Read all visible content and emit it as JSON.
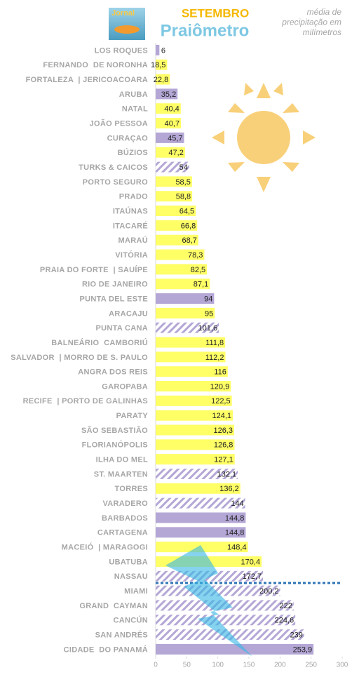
{
  "chart_data": {
    "type": "bar",
    "orientation": "horizontal",
    "logo": "Jornal",
    "title": "SETEMBRO",
    "subtitle": "Praiômetro",
    "note_lines": [
      "média de",
      "precipitação em",
      "milímetros"
    ],
    "categories": [
      "LOS ROQUES",
      "FERNANDO  DE NORONHA",
      "FORTALEZA  | JERICOACOARA",
      "ARUBA",
      "NATAL",
      "JOÃO PESSOA",
      "CURAÇAO",
      "BÚZIOS",
      "TURKS & CAICOS",
      "PORTO SEGURO",
      "PRADO",
      "ITAÚNAS",
      "ITACARÉ",
      "MARAÚ",
      "VITÓRIA",
      "PRAIA DO FORTE  | SAUÍPE",
      "RIO DE JANEIRO",
      "PUNTA DEL ESTE",
      "ARACAJU",
      "PUNTA CANA",
      "BALNEÁRIO  CAMBORIÚ",
      "SALVADOR  | MORRO DE S. PAULO",
      "ANGRA DOS REIS",
      "GAROPABA",
      "RECIFE  | PORTO DE GALINHAS",
      "PARATY",
      "SÃO SEBASTIÃO",
      "FLORIANÓPOLIS",
      "ILHA DO MEL",
      "ST. MAARTEN",
      "TORRES",
      "VARADERO",
      "BARBADOS",
      "CARTAGENA",
      "MACEIÓ  | MARAGOGI",
      "UBATUBA",
      "NASSAU",
      "MIAMI",
      "GRAND  CAYMAN",
      "CANCÚN",
      "SAN ANDRÉS",
      "CIDADE  DO PANAMÁ"
    ],
    "values": [
      6,
      18.5,
      22.8,
      35.2,
      40.4,
      40.7,
      45.7,
      47.2,
      54,
      58.5,
      58.8,
      64.5,
      66.8,
      68.7,
      78.3,
      82.5,
      87.1,
      94,
      95,
      101.6,
      111.8,
      112.2,
      116,
      120.9,
      122.5,
      124.1,
      126.3,
      126.8,
      127.1,
      132.1,
      136.2,
      144,
      144.8,
      144.8,
      148.4,
      170.4,
      172.7,
      200.2,
      222,
      224.6,
      239,
      253.9
    ],
    "value_labels": [
      "6",
      "18,5",
      "22,8",
      "35,2",
      "40,4",
      "40,7",
      "45,7",
      "47,2",
      "54",
      "58,5",
      "58,8",
      "64,5",
      "66,8",
      "68,7",
      "78,3",
      "82,5",
      "87,1",
      "94",
      "95",
      "101,6",
      "111,8",
      "112,2",
      "116",
      "120,9",
      "122,5",
      "124,1",
      "126,3",
      "126,8",
      "127,1",
      "132,1",
      "136,2",
      "144",
      "144,8",
      "144,8",
      "148,4",
      "170,4",
      "172,7",
      "200,2",
      "222",
      "224,6",
      "239",
      "253,9"
    ],
    "colors": [
      "#b4a7d6",
      "#ffff66",
      "#ffff66",
      "#b4a7d6",
      "#ffff66",
      "#ffff66",
      "#b4a7d6",
      "#ffff66",
      "#b4a7d6",
      "#ffff66",
      "#ffff66",
      "#ffff66",
      "#ffff66",
      "#ffff66",
      "#ffff66",
      "#ffff66",
      "#ffff66",
      "#b4a7d6",
      "#ffff66",
      "#b4a7d6",
      "#ffff66",
      "#ffff66",
      "#ffff66",
      "#ffff66",
      "#ffff66",
      "#ffff66",
      "#ffff66",
      "#ffff66",
      "#ffff66",
      "#b4a7d6",
      "#ffff66",
      "#b4a7d6",
      "#b4a7d6",
      "#b4a7d6",
      "#ffff66",
      "#ffff66",
      "#b4a7d6",
      "#b4a7d6",
      "#b4a7d6",
      "#b4a7d6",
      "#b4a7d6",
      "#b4a7d6"
    ],
    "hatched": [
      false,
      false,
      false,
      false,
      false,
      false,
      false,
      false,
      true,
      false,
      false,
      false,
      false,
      false,
      false,
      false,
      false,
      false,
      false,
      true,
      false,
      false,
      false,
      false,
      false,
      false,
      false,
      false,
      false,
      true,
      false,
      true,
      false,
      false,
      false,
      false,
      true,
      true,
      true,
      true,
      true,
      false
    ],
    "xlim": [
      0,
      300
    ],
    "xticks": [
      0,
      50,
      100,
      150,
      200,
      250,
      300
    ]
  }
}
